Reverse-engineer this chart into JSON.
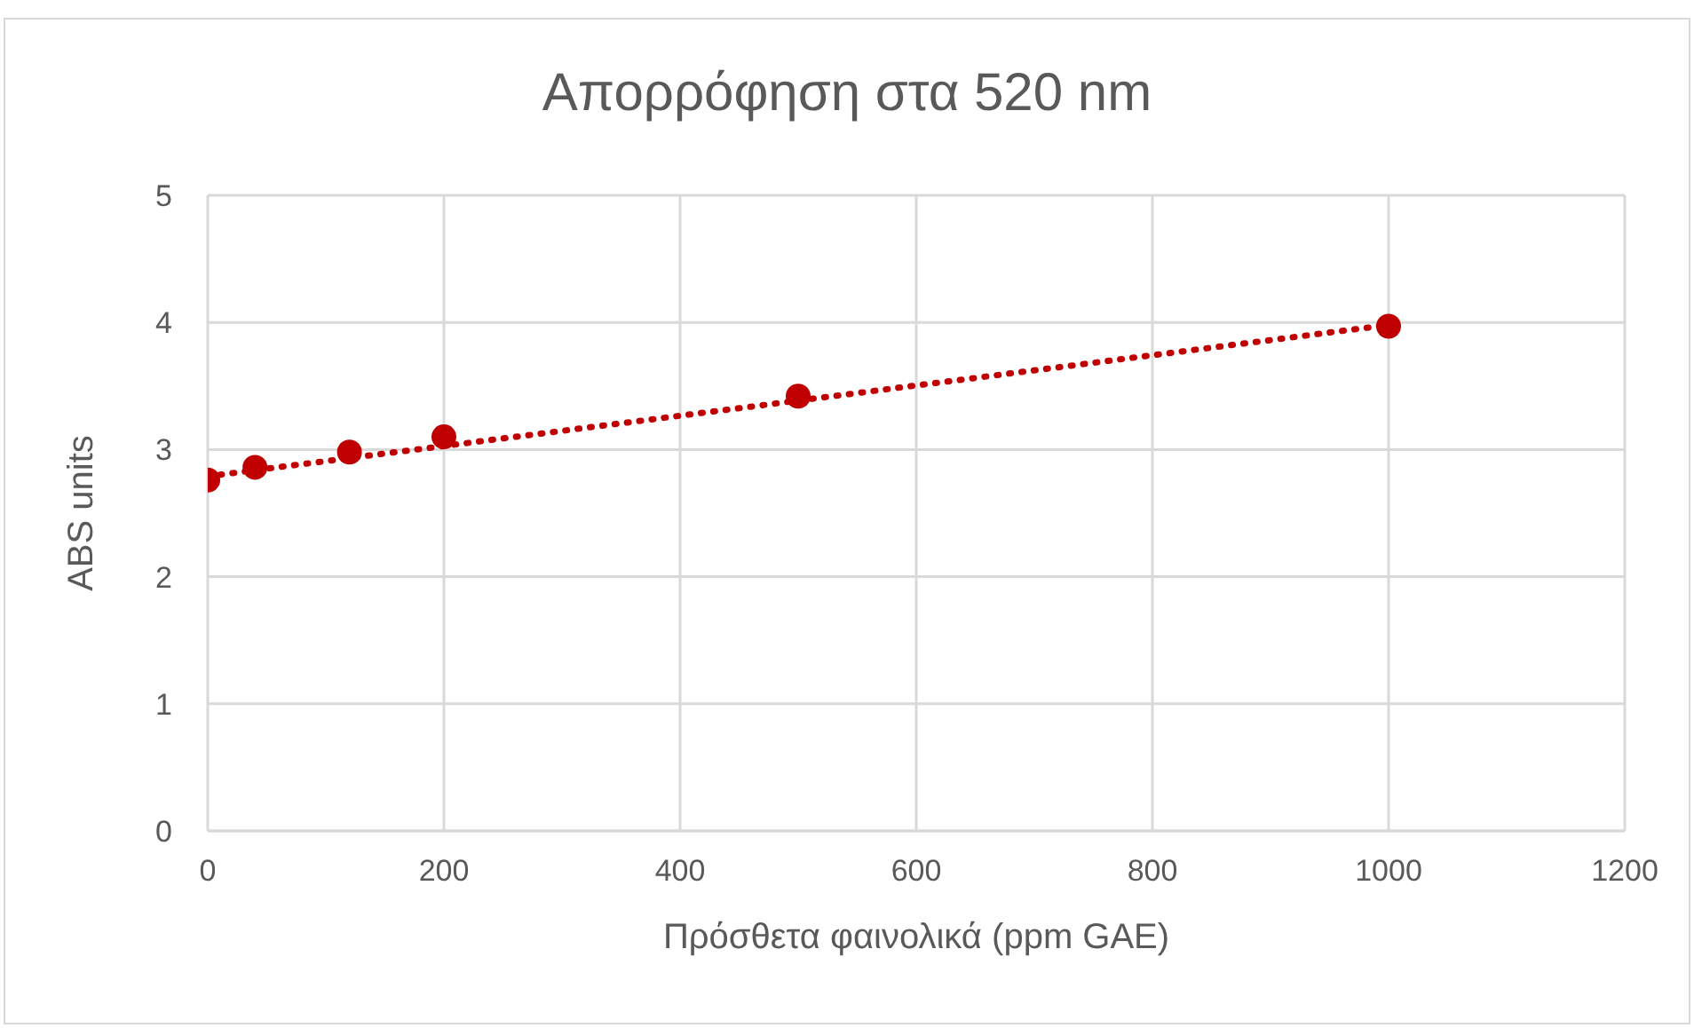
{
  "chart_data": {
    "type": "scatter",
    "title": "Απορρόφηση στα 520 nm",
    "xlabel": "Πρόσθετα φαινολικά (ppm GAE)",
    "ylabel": "ABS units",
    "series": [
      {
        "color": "#c00000",
        "x": [
          0,
          40,
          120,
          200,
          500,
          1000
        ],
        "values": [
          2.76,
          2.86,
          2.98,
          3.1,
          3.42,
          3.97
        ],
        "marker": "circle"
      },
      {
        "type": "line",
        "color": "#c00000",
        "x": [
          0,
          1000
        ],
        "values": [
          2.79,
          3.98
        ],
        "line_style": "dotted",
        "marker": "none"
      }
    ],
    "xlim": [
      0,
      1200
    ],
    "xticks": [
      0,
      200,
      400,
      600,
      800,
      1000,
      1200
    ],
    "ylim": [
      0,
      5
    ],
    "yticks": [
      0,
      1,
      2,
      3,
      4,
      5
    ],
    "grid": true,
    "legend": false
  }
}
